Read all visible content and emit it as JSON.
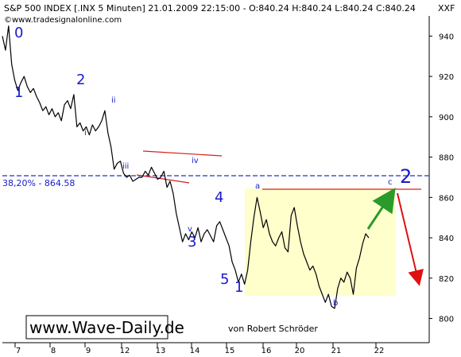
{
  "header": {
    "title": "S&P 500 INDEX [.INX  5 Minuten] 21.01.2009 22:15:00 - O:840.24 H:840.24 L:840.24 C:840.24",
    "source": "www.tradesignalonline.com",
    "symbol": "XXF",
    "copyright": "©"
  },
  "fib": {
    "label": "38,20% - 864.58",
    "value": 864.58
  },
  "branding": {
    "site": "www.Wave-Daily.de",
    "author": "von Robert Schröder"
  },
  "colors": {
    "line": "#000000",
    "wave_labels": "#1a1acc",
    "fib_line": "#2233cc",
    "triangle": "#d42020",
    "box_fill": "#ffffcc",
    "up_arrow": "#2a9a2a",
    "down_arrow": "#dd1111"
  },
  "chart_data": {
    "type": "line",
    "x_tick_labels": [
      "7",
      "8",
      "9",
      "12",
      "13",
      "14",
      "15",
      "16",
      "20",
      "21",
      "22"
    ],
    "y_ticks": [
      800,
      820,
      840,
      860,
      880,
      900,
      920,
      940
    ],
    "ylim": [
      788,
      950
    ],
    "grid": false,
    "series": [
      {
        "values": [
          940,
          933,
          945,
          926,
          918,
          913,
          917,
          920,
          915,
          912,
          914,
          910,
          907,
          903,
          905,
          901,
          904,
          900,
          902,
          898,
          906,
          908,
          904,
          911,
          895,
          897,
          893,
          895,
          891,
          896,
          893,
          895,
          898,
          903,
          892,
          885,
          874,
          877,
          878,
          872,
          870,
          871,
          868,
          869,
          870,
          870,
          873,
          871,
          875,
          872,
          869,
          870,
          873,
          865,
          868,
          862,
          852,
          845,
          838,
          842,
          839,
          843,
          840,
          845,
          838,
          842,
          844,
          841,
          838,
          846,
          848,
          844,
          840,
          836,
          828,
          824,
          818,
          822,
          817,
          824,
          838,
          850,
          860,
          853,
          845,
          849,
          842,
          838,
          836,
          840,
          843,
          835,
          833,
          851,
          855,
          846,
          838,
          832,
          828,
          824,
          826,
          822,
          816,
          812,
          808,
          812,
          806,
          805,
          815,
          820,
          818,
          823,
          820,
          812,
          825,
          830,
          837,
          842,
          840
        ]
      }
    ],
    "wave_labels": [
      {
        "text": "0",
        "size": "large"
      },
      {
        "text": "1",
        "size": "large"
      },
      {
        "text": "2",
        "size": "large"
      },
      {
        "text": "i",
        "size": "small"
      },
      {
        "text": "ii",
        "size": "small"
      },
      {
        "text": "iii",
        "size": "small"
      },
      {
        "text": "iv",
        "size": "small"
      },
      {
        "text": "v",
        "size": "small"
      },
      {
        "text": "3",
        "size": "large"
      },
      {
        "text": "4",
        "size": "large"
      },
      {
        "text": "5",
        "size": "large"
      },
      {
        "text": "1",
        "size": "large"
      },
      {
        "text": "a",
        "size": "small"
      },
      {
        "text": "b",
        "size": "small"
      },
      {
        "text": "c",
        "size": "small"
      },
      {
        "text": "2",
        "size": "xlarge"
      }
    ]
  }
}
